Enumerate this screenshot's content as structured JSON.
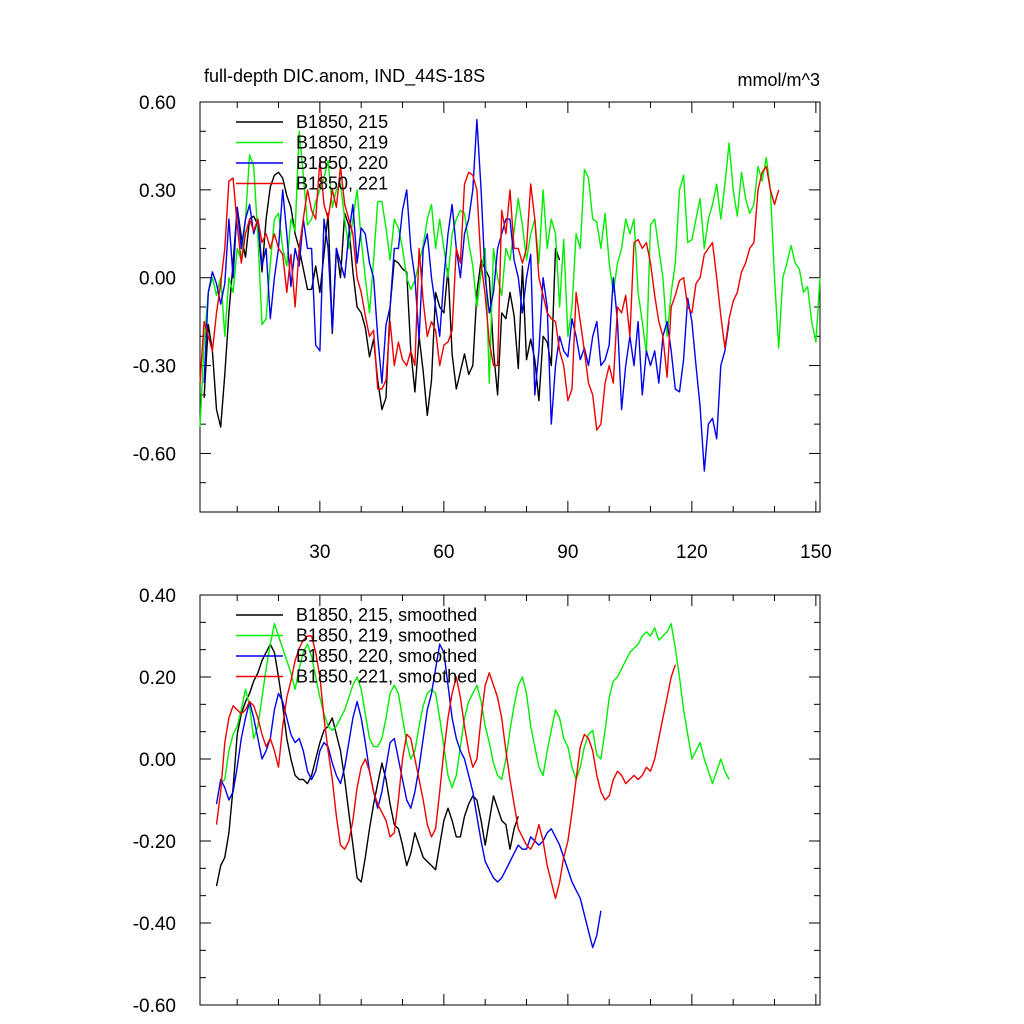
{
  "chart_data": [
    {
      "type": "line",
      "title": "full-depth DIC.anom, IND_44S-18S",
      "units": "mmol/m^3",
      "xlim": [
        1,
        151
      ],
      "ylim": [
        -0.8,
        0.6
      ],
      "x_ticks": [
        30,
        60,
        90,
        120,
        150
      ],
      "x_tick_labels": [
        "30",
        "60",
        "90",
        "120",
        "150"
      ],
      "y_ticks": [
        0.6,
        0.3,
        0.0,
        -0.3,
        -0.6
      ],
      "y_tick_labels": [
        "0.60",
        "0.30",
        "0.00",
        "-0.30",
        "-0.60"
      ],
      "legend_position": "top-left",
      "series": [
        {
          "name": "B1850, 215",
          "color": "#000000",
          "x0": 2,
          "values": [
            -0.41,
            -0.16,
            -0.25,
            -0.45,
            -0.51,
            -0.33,
            -0.12,
            0.05,
            0.24,
            0.14,
            0.07,
            0.2,
            0.21,
            0.18,
            0.02,
            0.2,
            0.31,
            0.35,
            0.36,
            0.34,
            0.28,
            0.24,
            0.15,
            0.1,
            0.03,
            -0.04,
            -0.04,
            0.04,
            -0.05,
            0.08,
            0.22,
            -0.19,
            0.1,
            0.0,
            0.22,
            0.18,
            0.02,
            -0.1,
            -0.12,
            -0.17,
            -0.27,
            -0.21,
            -0.35,
            -0.45,
            -0.41,
            -0.1,
            0.06,
            0.05,
            0.03,
            0.02,
            -0.25,
            -0.39,
            -0.2,
            -0.32,
            -0.47,
            -0.35,
            -0.05,
            -0.1,
            -0.12,
            0.03,
            -0.26,
            -0.38,
            -0.32,
            -0.26,
            -0.33,
            -0.3,
            -0.05,
            0.06,
            0.03,
            0.0,
            -0.25,
            -0.4,
            -0.12,
            -0.14,
            -0.05,
            -0.13,
            -0.31,
            0.04,
            -0.28,
            -0.21,
            -0.28,
            -0.42,
            -0.2,
            -0.22,
            -0.3,
            0.1,
            0.06
          ]
        },
        {
          "name": "B1850, 219",
          "color": "#00ee00",
          "x0": 1,
          "values": [
            -0.51,
            -0.22,
            -0.05,
            0.0,
            -0.06,
            0.0,
            -0.2,
            0.0,
            -0.05,
            0.1,
            0.06,
            0.2,
            0.42,
            0.38,
            0.14,
            -0.16,
            -0.14,
            0.05,
            0.2,
            0.22,
            0.1,
            0.04,
            0.2,
            0.16,
            0.5,
            0.35,
            0.18,
            0.2,
            0.26,
            0.3,
            0.34,
            0.4,
            0.24,
            0.3,
            0.32,
            0.2,
            0.1,
            0.2,
            0.3,
            0.13,
            0.0,
            -0.12,
            0.06,
            0.26,
            0.26,
            0.17,
            0.06,
            0.2,
            0.17,
            0.1,
            0.0,
            -0.04,
            -0.01,
            0.05,
            0.11,
            0.2,
            0.25,
            0.1,
            0.2,
            0.1,
            0.0,
            0.15,
            0.2,
            0.23,
            0.22,
            0.12,
            0.04,
            -0.1,
            0.02,
            0.1,
            -0.36,
            0.1,
            0.0,
            -0.06,
            0.1,
            0.06,
            0.16,
            0.27,
            0.18,
            0.06,
            0.15,
            0.2,
            0.05,
            0.3,
            0.1,
            0.2,
            0.15,
            -0.1,
            0.13,
            -0.2,
            -0.1,
            0.15,
            0.1,
            0.37,
            0.34,
            0.2,
            0.19,
            0.1,
            0.22,
            0.05,
            -0.05,
            0.05,
            0.1,
            0.2,
            0.15,
            0.2,
            -0.05,
            -0.15,
            -0.26,
            0.18,
            0.2,
            0.1,
            0.0,
            -0.2,
            -0.05,
            0.05,
            0.3,
            0.35,
            0.12,
            0.13,
            0.2,
            0.27,
            0.1,
            0.2,
            0.25,
            0.32,
            0.2,
            0.32,
            0.46,
            0.3,
            0.21,
            0.36,
            0.27,
            0.22,
            0.25,
            0.38,
            0.33,
            0.41,
            0.3,
            0.0,
            -0.24,
            0.0,
            0.05,
            0.11,
            0.05,
            0.03,
            -0.05,
            -0.03,
            -0.15,
            -0.22,
            0.0
          ]
        },
        {
          "name": "B1850, 220",
          "color": "#0000ee",
          "x0": 2,
          "values": [
            -0.36,
            -0.05,
            0.02,
            -0.02,
            -0.09,
            -0.02,
            0.2,
            0.0,
            0.24,
            0.1,
            0.2,
            0.25,
            0.15,
            0.2,
            0.04,
            0.1,
            -0.14,
            0.0,
            0.1,
            0.3,
            0.15,
            -0.03,
            0.1,
            0.04,
            0.2,
            0.1,
            0.1,
            -0.23,
            -0.25,
            0.2,
            0.1,
            -0.18,
            0.1,
            0.05,
            0.0,
            0.15,
            0.25,
            0.05,
            0.17,
            0.15,
            0.05,
            0.0,
            -0.2,
            -0.36,
            -0.16,
            -0.1,
            0.1,
            0.1,
            0.23,
            0.3,
            0.1,
            0.0,
            -0.21,
            0.1,
            0.15,
            0.0,
            -0.1,
            -0.2,
            0.0,
            0.15,
            0.25,
            0.1,
            0.0,
            0.15,
            0.2,
            0.3,
            0.54,
            0.3,
            0.0,
            -0.12,
            -0.05,
            0.1,
            0.15,
            0.2,
            0.2,
            0.06,
            0.0,
            -0.12,
            0.0,
            0.08,
            -0.4,
            -0.25,
            0.0,
            -0.1,
            -0.5,
            -0.3,
            -0.2,
            -0.25,
            -0.27,
            -0.14,
            -0.2,
            -0.28,
            -0.24,
            -0.3,
            -0.2,
            -0.15,
            -0.3,
            -0.28,
            -0.23,
            0.0,
            -0.15,
            -0.45,
            -0.3,
            -0.2,
            -0.3,
            -0.15,
            -0.4,
            -0.25,
            -0.3,
            -0.25,
            -0.36,
            -0.2,
            -0.15,
            -0.25,
            -0.38,
            -0.39,
            -0.28,
            -0.07,
            -0.15,
            -0.3,
            -0.44,
            -0.66,
            -0.5,
            -0.48,
            -0.55,
            -0.3,
            -0.25,
            -0.15
          ]
        },
        {
          "name": "B1850, 221",
          "color": "#ee0000",
          "x0": 1,
          "values": [
            -0.36,
            -0.15,
            -0.2,
            -0.25,
            -0.12,
            -0.02,
            0.1,
            0.33,
            0.34,
            0.18,
            0.05,
            0.15,
            0.2,
            0.16,
            0.2,
            0.12,
            0.15,
            0.1,
            0.15,
            0.1,
            0.08,
            -0.05,
            0.08,
            -0.1,
            0.1,
            0.2,
            0.3,
            0.23,
            0.2,
            0.4,
            0.25,
            0.2,
            0.3,
            0.24,
            0.38,
            0.25,
            0.2,
            0.15,
            0.0,
            -0.05,
            -0.13,
            -0.2,
            -0.18,
            -0.38,
            -0.38,
            -0.35,
            -0.15,
            -0.3,
            -0.22,
            -0.28,
            -0.3,
            -0.25,
            -0.3,
            0.1,
            -0.08,
            -0.2,
            -0.15,
            -0.18,
            -0.3,
            -0.23,
            -0.22,
            -0.18,
            0.1,
            0.05,
            0.32,
            0.36,
            0.35,
            0.3,
            0.05,
            -0.06,
            -0.22,
            -0.3,
            -0.3,
            0.23,
            0.15,
            0.3,
            0.1,
            0.1,
            0.05,
            0.1,
            0.32,
            0.2,
            0.0,
            -0.06,
            -0.12,
            -0.14,
            -0.15,
            -0.25,
            -0.3,
            -0.42,
            -0.38,
            -0.05,
            -0.15,
            -0.25,
            -0.36,
            -0.4,
            -0.52,
            -0.5,
            -0.36,
            -0.3,
            -0.36,
            -0.1,
            -0.12,
            -0.06,
            -0.2,
            0.12,
            0.13,
            0.1,
            0.12,
            0.05,
            -0.06,
            -0.15,
            -0.2,
            -0.34,
            -0.1,
            -0.06,
            -0.01,
            0.0,
            -0.1,
            -0.12,
            -0.02,
            0.0,
            0.08,
            0.1,
            0.12,
            0.0,
            -0.13,
            -0.24,
            -0.14,
            -0.08,
            -0.05,
            0.02,
            0.05,
            0.1,
            0.12,
            0.3,
            0.36,
            0.38,
            0.3,
            0.25,
            0.3
          ]
        }
      ]
    },
    {
      "type": "line",
      "xlim": [
        1,
        151
      ],
      "ylim": [
        -0.6,
        0.4
      ],
      "y_ticks": [
        0.4,
        0.2,
        0.0,
        -0.2,
        -0.4,
        -0.6
      ],
      "y_tick_labels": [
        "0.40",
        "0.20",
        "0.00",
        "-0.20",
        "-0.40",
        "-0.60"
      ],
      "legend_position": "top-left",
      "series": [
        {
          "name": "B1850, 215, smoothed",
          "color": "#000000",
          "x0": 5,
          "values": [
            -0.31,
            -0.26,
            -0.24,
            -0.18,
            -0.07,
            0.06,
            0.11,
            0.14,
            0.16,
            0.19,
            0.21,
            0.24,
            0.26,
            0.28,
            0.26,
            0.2,
            0.13,
            0.05,
            0.0,
            -0.04,
            -0.05,
            -0.05,
            -0.06,
            -0.04,
            0.0,
            0.04,
            0.07,
            0.08,
            0.1,
            0.06,
            0.02,
            -0.05,
            -0.13,
            -0.21,
            -0.29,
            -0.3,
            -0.24,
            -0.17,
            -0.11,
            -0.06,
            -0.01,
            -0.05,
            -0.11,
            -0.16,
            -0.17,
            -0.21,
            -0.26,
            -0.23,
            -0.18,
            -0.21,
            -0.24,
            -0.25,
            -0.26,
            -0.27,
            -0.21,
            -0.15,
            -0.12,
            -0.15,
            -0.19,
            -0.19,
            -0.14,
            -0.11,
            -0.09,
            -0.1,
            -0.15,
            -0.21,
            -0.15,
            -0.09,
            -0.12,
            -0.15,
            -0.16,
            -0.22,
            -0.17,
            -0.14
          ]
        },
        {
          "name": "B1850, 219, smoothed",
          "color": "#00ee00",
          "x0": 6,
          "values": [
            -0.06,
            -0.05,
            0.02,
            0.06,
            0.08,
            0.12,
            0.17,
            0.13,
            0.05,
            0.08,
            0.15,
            0.22,
            0.28,
            0.33,
            0.3,
            0.27,
            0.24,
            0.21,
            0.17,
            0.22,
            0.26,
            0.28,
            0.25,
            0.2,
            0.15,
            0.11,
            0.08,
            0.07,
            0.08,
            0.1,
            0.12,
            0.15,
            0.18,
            0.2,
            0.17,
            0.11,
            0.05,
            0.03,
            0.03,
            0.05,
            0.1,
            0.16,
            0.18,
            0.16,
            0.1,
            0.04,
            0.0,
            0.02,
            0.08,
            0.13,
            0.16,
            0.17,
            0.16,
            0.1,
            0.03,
            -0.04,
            -0.07,
            -0.04,
            0.03,
            0.1,
            0.14,
            0.16,
            0.18,
            0.14,
            0.08,
            0.04,
            -0.01,
            -0.04,
            -0.05,
            0.0,
            0.07,
            0.13,
            0.18,
            0.2,
            0.16,
            0.08,
            0.03,
            -0.02,
            -0.04,
            0.02,
            0.07,
            0.12,
            0.1,
            0.05,
            0.03,
            -0.02,
            -0.05,
            -0.02,
            0.03,
            0.06,
            0.07,
            0.01,
            0.0,
            0.07,
            0.15,
            0.19,
            0.2,
            0.22,
            0.24,
            0.26,
            0.27,
            0.28,
            0.3,
            0.31,
            0.3,
            0.32,
            0.29,
            0.3,
            0.31,
            0.33,
            0.27,
            0.2,
            0.12,
            0.06,
            0.0,
            0.02,
            0.04,
            0.0,
            -0.03,
            -0.06,
            -0.03,
            0.0,
            -0.03,
            -0.05
          ]
        },
        {
          "name": "B1850, 220, smoothed",
          "color": "#0000ee",
          "x0": 5,
          "values": [
            -0.11,
            -0.05,
            -0.07,
            -0.1,
            -0.08,
            -0.02,
            0.05,
            0.1,
            0.14,
            0.1,
            0.05,
            0.0,
            0.02,
            0.05,
            0.12,
            0.16,
            0.14,
            0.1,
            0.06,
            0.04,
            0.05,
            0.02,
            -0.03,
            -0.05,
            -0.03,
            0.02,
            0.04,
            0.03,
            -0.01,
            -0.04,
            -0.06,
            -0.02,
            0.04,
            0.1,
            0.14,
            0.1,
            0.04,
            -0.03,
            -0.08,
            -0.12,
            -0.08,
            -0.02,
            0.04,
            0.05,
            0.0,
            -0.05,
            -0.1,
            -0.12,
            -0.08,
            -0.02,
            0.05,
            0.12,
            0.16,
            0.22,
            0.28,
            0.26,
            0.18,
            0.1,
            0.05,
            0.02,
            0.0,
            -0.04,
            -0.08,
            -0.14,
            -0.2,
            -0.25,
            -0.27,
            -0.29,
            -0.3,
            -0.29,
            -0.27,
            -0.25,
            -0.23,
            -0.21,
            -0.22,
            -0.22,
            -0.19,
            -0.2,
            -0.21,
            -0.2,
            -0.18,
            -0.17,
            -0.19,
            -0.21,
            -0.24,
            -0.27,
            -0.3,
            -0.32,
            -0.34,
            -0.38,
            -0.42,
            -0.46,
            -0.43,
            -0.37
          ]
        },
        {
          "name": "B1850, 221, smoothed",
          "color": "#ee0000",
          "x0": 5,
          "values": [
            -0.16,
            -0.08,
            0.04,
            0.1,
            0.13,
            0.12,
            0.11,
            0.12,
            0.14,
            0.13,
            0.1,
            0.06,
            0.03,
            0.05,
            0.02,
            -0.02,
            0.08,
            0.15,
            0.19,
            0.24,
            0.27,
            0.29,
            0.3,
            0.3,
            0.26,
            0.2,
            0.1,
            0.02,
            -0.05,
            -0.14,
            -0.21,
            -0.22,
            -0.2,
            -0.15,
            -0.07,
            -0.02,
            0.0,
            -0.03,
            -0.08,
            -0.11,
            -0.13,
            -0.15,
            -0.19,
            -0.18,
            -0.1,
            0.0,
            0.06,
            0.05,
            0.0,
            -0.05,
            -0.1,
            -0.16,
            -0.19,
            -0.17,
            -0.08,
            0.02,
            0.1,
            0.16,
            0.2,
            0.15,
            0.08,
            0.02,
            -0.02,
            0.0,
            0.1,
            0.18,
            0.21,
            0.18,
            0.15,
            0.1,
            0.02,
            -0.05,
            -0.11,
            -0.17,
            -0.19,
            -0.21,
            -0.22,
            -0.2,
            -0.16,
            -0.2,
            -0.26,
            -0.3,
            -0.34,
            -0.3,
            -0.24,
            -0.2,
            -0.13,
            -0.05,
            0.03,
            0.06,
            0.05,
            0.02,
            -0.04,
            -0.08,
            -0.1,
            -0.09,
            -0.05,
            -0.03,
            -0.04,
            -0.06,
            -0.05,
            -0.04,
            -0.05,
            -0.04,
            -0.02,
            -0.03,
            0.0,
            0.05,
            0.1,
            0.15,
            0.2,
            0.23
          ]
        }
      ]
    }
  ]
}
